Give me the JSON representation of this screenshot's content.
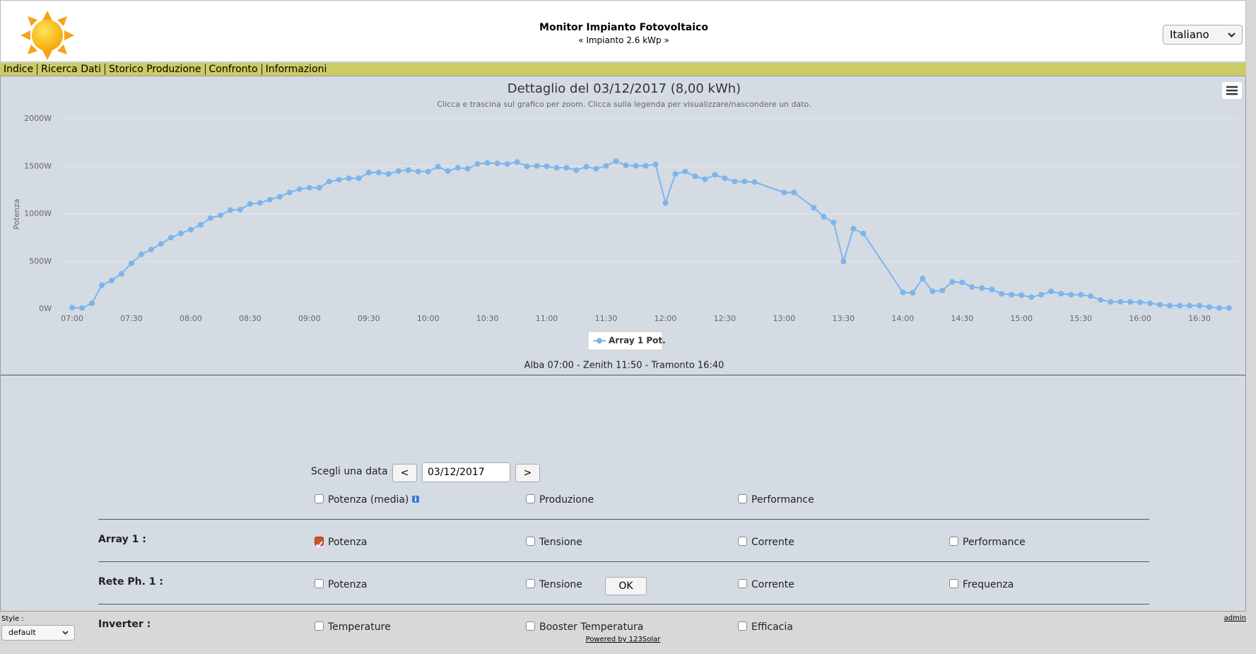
{
  "header": {
    "title": "Monitor Impianto Fotovoltaico",
    "subtitle": "« Impianto 2.6 kWp »",
    "language": "Italiano"
  },
  "menu": [
    "Indice",
    "Ricerca Dati",
    "Storico Produzione",
    "Confronto",
    "Informazioni"
  ],
  "chart_data": {
    "type": "line",
    "title": "Dettaglio del 03/12/2017 (8,00 kWh)",
    "subtitle": "Clicca e trascina sul grafico per zoom. Clicca sulla legenda per visualizzare/nascondere un dato.",
    "y_label": "Potenza",
    "x": [
      "07:00",
      "07:05",
      "07:10",
      "07:15",
      "07:20",
      "07:25",
      "07:30",
      "07:35",
      "07:40",
      "07:45",
      "07:50",
      "07:55",
      "08:00",
      "08:05",
      "08:10",
      "08:15",
      "08:20",
      "08:25",
      "08:30",
      "08:35",
      "08:40",
      "08:45",
      "08:50",
      "08:55",
      "09:00",
      "09:05",
      "09:10",
      "09:15",
      "09:20",
      "09:25",
      "09:30",
      "09:35",
      "09:40",
      "09:45",
      "09:50",
      "09:55",
      "10:00",
      "10:05",
      "10:10",
      "10:15",
      "10:20",
      "10:25",
      "10:30",
      "10:35",
      "10:40",
      "10:45",
      "10:50",
      "10:55",
      "11:00",
      "11:05",
      "11:10",
      "11:15",
      "11:20",
      "11:25",
      "11:30",
      "11:35",
      "11:40",
      "11:45",
      "11:50",
      "11:55",
      "12:00",
      "12:05",
      "12:10",
      "12:15",
      "12:20",
      "12:25",
      "12:30",
      "12:35",
      "12:40",
      "12:45",
      "13:00",
      "13:05",
      "13:15",
      "13:20",
      "13:25",
      "13:30",
      "13:35",
      "13:40",
      "14:00",
      "14:05",
      "14:10",
      "14:15",
      "14:20",
      "14:25",
      "14:30",
      "14:35",
      "14:40",
      "14:45",
      "14:50",
      "14:55",
      "15:00",
      "15:05",
      "15:10",
      "15:15",
      "15:20",
      "15:25",
      "15:30",
      "15:35",
      "15:40",
      "15:45",
      "15:50",
      "15:55",
      "16:00",
      "16:05",
      "16:10",
      "16:15",
      "16:20",
      "16:25",
      "16:30",
      "16:35",
      "16:40",
      "16:45"
    ],
    "series": [
      {
        "name": "Array 1 Pot.",
        "color": "#7cb5ec",
        "values": [
          15,
          10,
          60,
          250,
          300,
          370,
          480,
          575,
          625,
          685,
          750,
          795,
          835,
          885,
          955,
          985,
          1040,
          1045,
          1105,
          1115,
          1150,
          1180,
          1225,
          1260,
          1275,
          1275,
          1340,
          1360,
          1375,
          1375,
          1435,
          1435,
          1420,
          1450,
          1460,
          1445,
          1445,
          1495,
          1450,
          1485,
          1475,
          1525,
          1535,
          1530,
          1525,
          1545,
          1500,
          1505,
          1500,
          1485,
          1485,
          1460,
          1495,
          1475,
          1505,
          1555,
          1510,
          1505,
          1505,
          1520,
          1115,
          1420,
          1445,
          1395,
          1365,
          1410,
          1375,
          1340,
          1340,
          1335,
          1225,
          1225,
          1065,
          970,
          910,
          500,
          845,
          795,
          175,
          170,
          320,
          185,
          195,
          285,
          280,
          230,
          220,
          205,
          160,
          150,
          145,
          125,
          150,
          185,
          160,
          150,
          150,
          135,
          95,
          75,
          75,
          75,
          70,
          60,
          45,
          35,
          35,
          35,
          35,
          20,
          10,
          10
        ]
      }
    ],
    "xlim": [
      "06:55",
      "16:50"
    ],
    "xticks": [
      "07:00",
      "07:30",
      "08:00",
      "08:30",
      "09:00",
      "09:30",
      "10:00",
      "10:30",
      "11:00",
      "11:30",
      "12:00",
      "12:30",
      "13:00",
      "13:30",
      "14:00",
      "14:30",
      "15:00",
      "15:30",
      "16:00",
      "16:30"
    ],
    "ylim": [
      0,
      2000
    ],
    "yticks": [
      {
        "value": 0,
        "label": "0W"
      },
      {
        "value": 500,
        "label": "500W"
      },
      {
        "value": 1000,
        "label": "1000W"
      },
      {
        "value": 1500,
        "label": "1500W"
      },
      {
        "value": 2000,
        "label": "2000W"
      }
    ],
    "grid": true,
    "legend": "bottom",
    "note": "Alba 07:00 - Zenith 11:50 - Tramonto 16:40"
  },
  "form": {
    "date_label": "Scegli una data :",
    "prev": "<",
    "next": ">",
    "date": "03/12/2017",
    "general": {
      "options": [
        "Potenza (media)",
        "Produzione",
        "Performance"
      ],
      "checked": [
        false,
        false,
        false
      ]
    },
    "rows": [
      {
        "label": "Array 1 :",
        "options": [
          "Potenza",
          "Tensione",
          "Corrente",
          "Performance"
        ],
        "checked": [
          true,
          false,
          false,
          false
        ]
      },
      {
        "label": "Rete Ph. 1 :",
        "options": [
          "Potenza",
          "Tensione",
          "Corrente",
          "Frequenza"
        ],
        "checked": [
          false,
          false,
          false,
          false
        ]
      },
      {
        "label": "Inverter :",
        "options": [
          "Temperature",
          "Booster Temperatura",
          "Efficacia"
        ],
        "checked": [
          false,
          false,
          false
        ]
      }
    ],
    "ok": "OK"
  },
  "footer": {
    "style_label": "Style :",
    "style": "default",
    "powered": "Powered by 123Solar",
    "admin": "admin"
  }
}
